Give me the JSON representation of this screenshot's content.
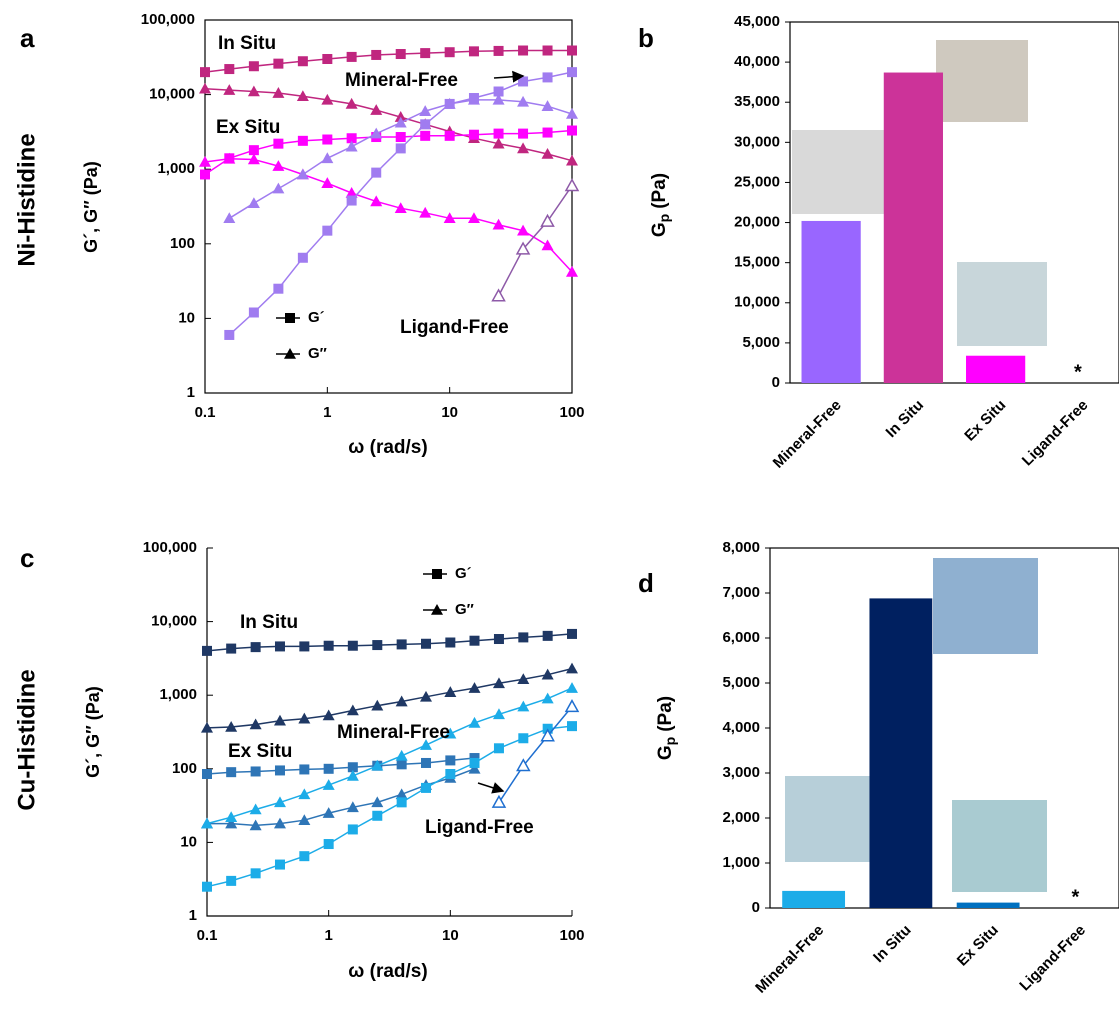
{
  "chart_data": [
    {
      "type": "line",
      "panel": "a",
      "row_label": "Ni-Histidine",
      "xlabel": "ω (rad/s)",
      "ylabel": "G´, G″ (Pa)",
      "xscale": "log",
      "yscale": "log",
      "moduli": [
        "G´",
        "G″"
      ],
      "x": [
        0.1,
        0.158,
        0.251,
        0.398,
        0.631,
        1,
        1.58,
        2.51,
        3.98,
        6.31,
        10,
        15.8,
        25.1,
        39.8,
        63.1,
        100
      ],
      "series": [
        {
          "name": "In Situ",
          "color": "#c0267f",
          "storage": [
            20000,
            22000,
            24000,
            26000,
            28000,
            30000,
            32000,
            34000,
            35000,
            36000,
            37000,
            38000,
            38500,
            39000,
            39000,
            39000
          ],
          "loss": [
            12000,
            11500,
            11000,
            10500,
            9500,
            8500,
            7500,
            6200,
            5000,
            4000,
            3200,
            2600,
            2200,
            1900,
            1600,
            1300
          ]
        },
        {
          "name": "Ex Situ",
          "color": "#ff00ff",
          "storage": [
            850,
            1400,
            1800,
            2200,
            2400,
            2500,
            2600,
            2700,
            2700,
            2800,
            2800,
            2900,
            3000,
            3000,
            3100,
            3300
          ],
          "loss": [
            1250,
            1380,
            1350,
            1100,
            850,
            650,
            480,
            370,
            300,
            260,
            220,
            220,
            180,
            150,
            95,
            42
          ]
        },
        {
          "name": "Mineral-Free",
          "color": "#a07cf0",
          "storage": [
            null,
            6,
            12,
            25,
            65,
            150,
            380,
            900,
            1900,
            4000,
            7500,
            9000,
            11000,
            15000,
            17000,
            20000
          ],
          "loss": [
            null,
            220,
            350,
            550,
            850,
            1400,
            2000,
            3000,
            4200,
            6000,
            7500,
            8500,
            8500,
            8000,
            7000,
            5500
          ]
        },
        {
          "name": "Ligand-Free",
          "color": "#8e5aa8",
          "open": true,
          "loss": [
            null,
            null,
            null,
            null,
            null,
            null,
            null,
            null,
            null,
            null,
            null,
            null,
            20,
            85,
            200,
            600
          ]
        }
      ],
      "xlim": [
        0.1,
        100
      ],
      "xticks": [
        0.1,
        1,
        10,
        100
      ],
      "ylim": [
        1,
        100000
      ],
      "yticks": [
        1,
        10,
        100,
        {
          "value": 1000,
          "label": "1,000"
        },
        {
          "value": 10000,
          "label": "10,000"
        },
        {
          "value": 100000,
          "label": "100,000"
        }
      ]
    },
    {
      "type": "bar",
      "panel": "b",
      "ylabel": {
        "symbol": "G",
        "subscript": "p",
        "unit": "(Pa)"
      },
      "categories": [
        "Mineral-Free",
        "In Situ",
        "Ex Situ",
        "Ligand-Free"
      ],
      "values": [
        20200,
        38700,
        3400,
        null
      ],
      "colors": [
        "#9966ff",
        "#cc3399",
        "#ff00ff",
        null
      ],
      "missing_marker": "*",
      "ylim": [
        0,
        45000
      ],
      "yticks": [
        0,
        {
          "value": 5000,
          "label": "5,000"
        },
        {
          "value": 10000,
          "label": "10,000"
        },
        {
          "value": 15000,
          "label": "15,000"
        },
        {
          "value": 20000,
          "label": "20,000"
        },
        {
          "value": 25000,
          "label": "25,000"
        },
        {
          "value": 30000,
          "label": "30,000"
        },
        {
          "value": 35000,
          "label": "35,000"
        },
        {
          "value": 40000,
          "label": "40,000"
        },
        {
          "value": 45000,
          "label": "45,000"
        }
      ]
    },
    {
      "type": "line",
      "panel": "c",
      "row_label": "Cu-Histidine",
      "xlabel": "ω (rad/s)",
      "ylabel": "G´, G″ (Pa)",
      "xscale": "log",
      "yscale": "log",
      "moduli": [
        "G´",
        "G″"
      ],
      "x": [
        0.1,
        0.158,
        0.251,
        0.398,
        0.631,
        1,
        1.58,
        2.51,
        3.98,
        6.31,
        10,
        15.8,
        25.1,
        39.8,
        63.1,
        100
      ],
      "series": [
        {
          "name": "In Situ",
          "color": "#1f3864",
          "storage": [
            4000,
            4300,
            4500,
            4600,
            4600,
            4700,
            4700,
            4800,
            4900,
            5000,
            5200,
            5500,
            5800,
            6100,
            6400,
            6800
          ],
          "loss": [
            360,
            370,
            400,
            450,
            480,
            530,
            620,
            720,
            820,
            950,
            1100,
            1250,
            1450,
            1650,
            1900,
            2300
          ]
        },
        {
          "name": "Ex Situ",
          "color": "#2e75b6",
          "storage": [
            85,
            90,
            92,
            95,
            98,
            100,
            105,
            110,
            115,
            120,
            130,
            140,
            null,
            null,
            null,
            null
          ],
          "loss": [
            18,
            18,
            17,
            18,
            20,
            25,
            30,
            35,
            45,
            60,
            75,
            100,
            null,
            null,
            null,
            null
          ]
        },
        {
          "name": "Mineral-Free",
          "color": "#1cace8",
          "storage": [
            2.5,
            3,
            3.8,
            5,
            6.5,
            9.5,
            15,
            23,
            35,
            55,
            85,
            120,
            190,
            260,
            350,
            380
          ],
          "loss": [
            18,
            22,
            28,
            35,
            45,
            60,
            80,
            110,
            150,
            210,
            300,
            420,
            550,
            700,
            900,
            1250
          ]
        },
        {
          "name": "Ligand-Free",
          "color": "#1f6fd0",
          "open": true,
          "loss": [
            null,
            null,
            null,
            null,
            null,
            null,
            null,
            null,
            null,
            null,
            null,
            null,
            35,
            110,
            280,
            700
          ]
        }
      ],
      "xlim": [
        0.1,
        100
      ],
      "xticks": [
        0.1,
        1,
        10,
        100
      ],
      "ylim": [
        1,
        100000
      ],
      "yticks": [
        1,
        10,
        100,
        {
          "value": 1000,
          "label": "1,000"
        },
        {
          "value": 10000,
          "label": "10,000"
        },
        {
          "value": 100000,
          "label": "100,000"
        }
      ]
    },
    {
      "type": "bar",
      "panel": "d",
      "ylabel": {
        "symbol": "G",
        "subscript": "p",
        "unit": "(Pa)"
      },
      "categories": [
        "Mineral-Free",
        "In Situ",
        "Ex Situ",
        "Ligand-Free"
      ],
      "values": [
        380,
        6880,
        120,
        null
      ],
      "colors": [
        "#1cace8",
        "#002060",
        "#0070c0",
        null
      ],
      "missing_marker": "*",
      "ylim": [
        0,
        8000
      ],
      "yticks": [
        0,
        {
          "value": 1000,
          "label": "1,000"
        },
        {
          "value": 2000,
          "label": "2,000"
        },
        {
          "value": 3000,
          "label": "3,000"
        },
        {
          "value": 4000,
          "label": "4,000"
        },
        {
          "value": 5000,
          "label": "5,000"
        },
        {
          "value": 6000,
          "label": "6,000"
        },
        {
          "value": 7000,
          "label": "7,000"
        },
        {
          "value": 8000,
          "label": "8,000"
        }
      ]
    }
  ]
}
